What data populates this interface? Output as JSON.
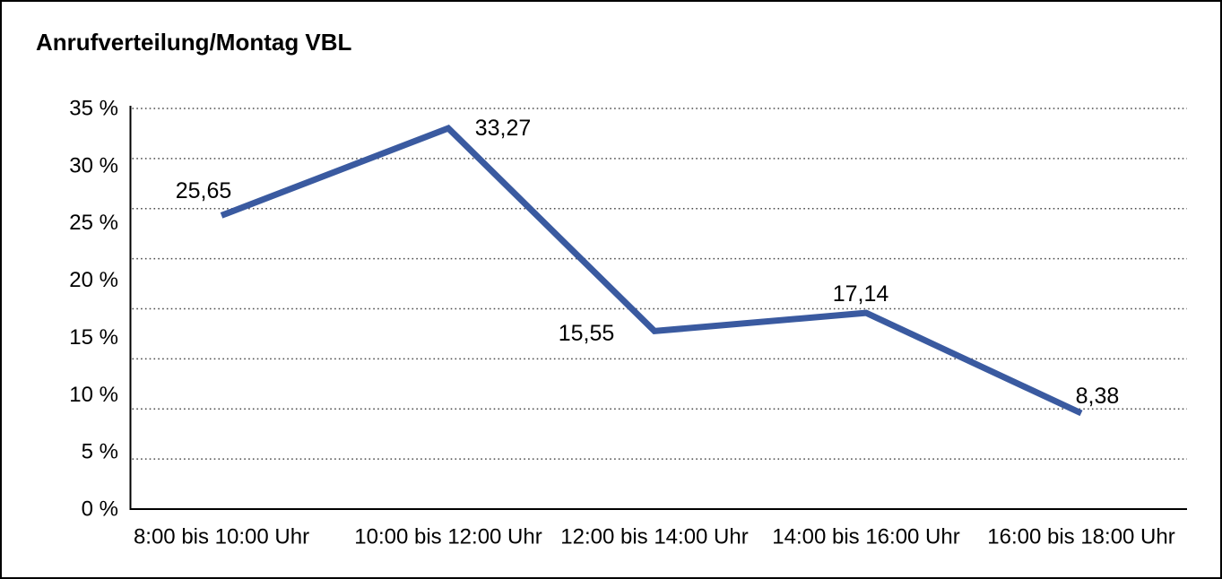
{
  "chart_data": {
    "type": "line",
    "title": "Anrufverteilung/Montag VBL",
    "categories": [
      "8:00 bis 10:00 Uhr",
      "10:00 bis 12:00 Uhr",
      "12:00 bis 14:00 Uhr",
      "14:00 bis 16:00 Uhr",
      "16:00 bis 18:00 Uhr"
    ],
    "series": [
      {
        "name": "Anrufverteilung Montag VBL",
        "values": [
          25.65,
          33.27,
          15.55,
          17.14,
          8.38
        ],
        "point_labels": [
          "25,65",
          "33,27",
          "15,55",
          "17,14",
          "8,38"
        ]
      }
    ],
    "y_axis": {
      "tick_labels": [
        "0 %",
        "5 %",
        "10 %",
        "15 %",
        "20 %",
        "25 %",
        "30 %",
        "35 %"
      ],
      "tick_values": [
        0,
        5,
        10,
        15,
        20,
        25,
        30,
        35
      ],
      "ylim": [
        0,
        35
      ],
      "unit": "%"
    },
    "grid": {
      "horizontal_dotted_lines": 8,
      "style": "dotted"
    },
    "legend": "none",
    "colors": {
      "line": "#3A5AA0",
      "axis": "#000000",
      "gridline": "#4a4a4a",
      "text": "#000000",
      "background": "#ffffff"
    }
  }
}
